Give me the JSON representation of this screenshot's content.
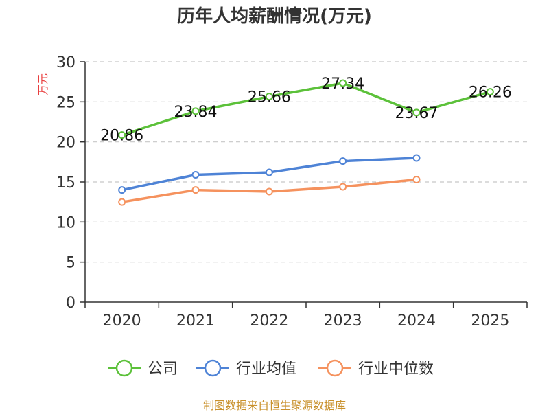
{
  "chart_data": {
    "type": "line",
    "title": "历年人均薪酬情况(万元)",
    "ylabel": "万元",
    "xlabel": "",
    "categories": [
      "2020",
      "2021",
      "2022",
      "2023",
      "2024",
      "2025"
    ],
    "ylim": [
      0,
      30
    ],
    "yticks": [
      0,
      5,
      10,
      15,
      20,
      25,
      30
    ],
    "grid": true,
    "legend_position": "bottom",
    "series": [
      {
        "name": "公司",
        "color": "#5cc13a",
        "values": [
          20.86,
          23.84,
          25.66,
          27.34,
          23.67,
          26.26
        ],
        "labels": [
          "20.86",
          "23.84",
          "25.66",
          "27.34",
          "23.67",
          "26.26"
        ]
      },
      {
        "name": "行业均值",
        "color": "#4e83d6",
        "values": [
          14.0,
          15.9,
          16.2,
          17.6,
          18.0,
          null
        ]
      },
      {
        "name": "行业中位数",
        "color": "#f5925e",
        "values": [
          12.5,
          14.0,
          13.8,
          14.4,
          15.3,
          null
        ]
      }
    ],
    "source": "制图数据来自恒生聚源数据库"
  }
}
